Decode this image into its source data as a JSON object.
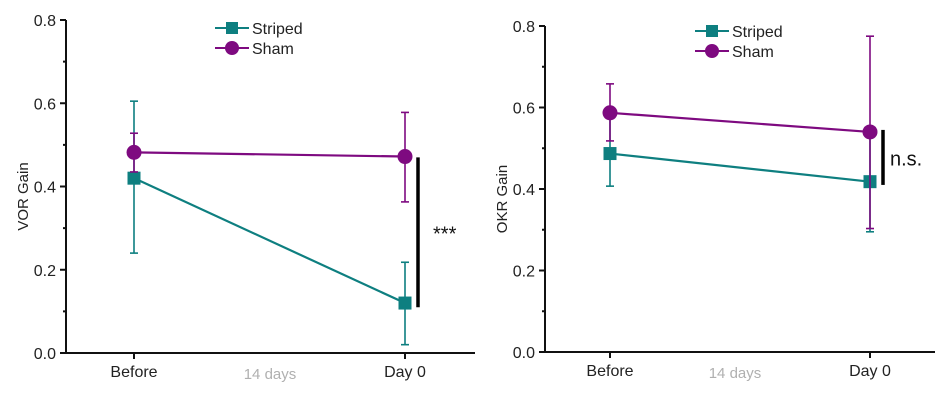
{
  "chart_data": [
    {
      "type": "line",
      "title": "",
      "ylabel": "VOR Gain",
      "xlabel": "",
      "ylim": [
        0,
        0.8
      ],
      "yticks": [
        "0.0",
        "0.2",
        "0.4",
        "0.6",
        "0.8"
      ],
      "yminor_ticks": [
        0.1,
        0.3,
        0.5,
        0.7
      ],
      "categories": [
        "Before",
        "Day 0"
      ],
      "middle_label": "14 days",
      "legend": {
        "position": "top-center",
        "entries": [
          "Striped",
          "Sham"
        ]
      },
      "series": [
        {
          "name": "Striped",
          "marker": "square",
          "color": "#0e7f80",
          "values": [
            0.42,
            0.12
          ],
          "err_low": [
            0.24,
            0.02
          ],
          "err_high": [
            0.605,
            0.218
          ]
        },
        {
          "name": "Sham",
          "marker": "circle",
          "color": "#7e0a80",
          "values": [
            0.482,
            0.472
          ],
          "err_low": [
            0.435,
            0.363
          ],
          "err_high": [
            0.528,
            0.578
          ]
        }
      ],
      "significance": {
        "label": "***",
        "from": 0.11,
        "to": 0.47,
        "at": "Day 0"
      }
    },
    {
      "type": "line",
      "title": "",
      "ylabel": "OKR Gain",
      "xlabel": "",
      "ylim": [
        0,
        0.8
      ],
      "yticks": [
        "0.0",
        "0.2",
        "0.4",
        "0.6",
        "0.8"
      ],
      "yminor_ticks": [
        0.1,
        0.3,
        0.5,
        0.7
      ],
      "categories": [
        "Before",
        "Day 0"
      ],
      "middle_label": "14 days",
      "legend": {
        "position": "top-center",
        "entries": [
          "Striped",
          "Sham"
        ]
      },
      "series": [
        {
          "name": "Striped",
          "marker": "square",
          "color": "#0e7f80",
          "values": [
            0.487,
            0.418
          ],
          "err_low": [
            0.407,
            0.295
          ],
          "err_high": [
            0.575,
            0.542
          ]
        },
        {
          "name": "Sham",
          "marker": "circle",
          "color": "#7e0a80",
          "values": [
            0.587,
            0.54
          ],
          "err_low": [
            0.518,
            0.303
          ],
          "err_high": [
            0.658,
            0.775
          ]
        }
      ],
      "significance": {
        "label": "n.s.",
        "from": 0.41,
        "to": 0.545,
        "at": "Day 0"
      }
    }
  ]
}
